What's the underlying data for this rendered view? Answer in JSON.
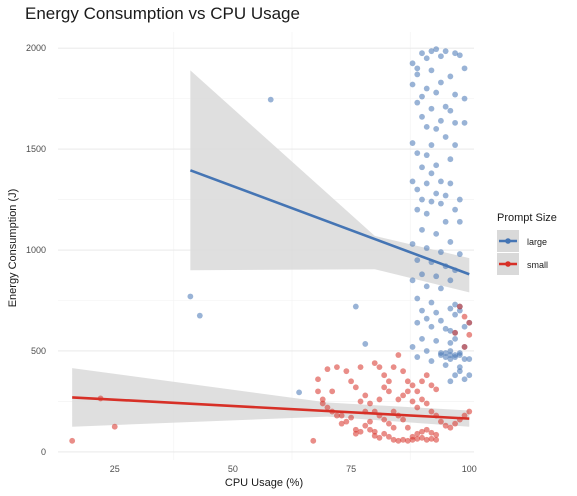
{
  "chart_data": {
    "type": "scatter",
    "title": "Energy Consumption vs CPU Usage",
    "xlabel": "CPU Usage (%)",
    "ylabel": "Energy Consumption (J)",
    "xlim": [
      13,
      101
    ],
    "ylim": [
      -40,
      2080
    ],
    "x_ticks": [
      25,
      50,
      75,
      100
    ],
    "y_ticks": [
      0,
      500,
      1000,
      1500,
      2000
    ],
    "grid": true,
    "legend": {
      "title": "Prompt Size",
      "position": "right"
    },
    "series": [
      {
        "name": "large",
        "color": "#4575b4",
        "points": [
          [
            41,
            770
          ],
          [
            43,
            675
          ],
          [
            58,
            1745
          ],
          [
            64,
            295
          ],
          [
            76,
            720
          ],
          [
            78,
            535
          ],
          [
            88,
            1925
          ],
          [
            89,
            1900
          ],
          [
            90,
            1975
          ],
          [
            92,
            1985
          ],
          [
            93,
            1995
          ],
          [
            94,
            1960
          ],
          [
            95,
            1985
          ],
          [
            97,
            1975
          ],
          [
            98,
            1965
          ],
          [
            91,
            1950
          ],
          [
            89,
            1870
          ],
          [
            92,
            1890
          ],
          [
            96,
            1860
          ],
          [
            99,
            1900
          ],
          [
            88,
            1820
          ],
          [
            91,
            1800
          ],
          [
            94,
            1830
          ],
          [
            90,
            1760
          ],
          [
            93,
            1780
          ],
          [
            97,
            1770
          ],
          [
            99,
            1750
          ],
          [
            89,
            1730
          ],
          [
            92,
            1700
          ],
          [
            95,
            1710
          ],
          [
            96,
            1690
          ],
          [
            90,
            1660
          ],
          [
            94,
            1640
          ],
          [
            97,
            1630
          ],
          [
            99,
            1630
          ],
          [
            91,
            1610
          ],
          [
            93,
            1600
          ],
          [
            95,
            1560
          ],
          [
            88,
            1530
          ],
          [
            92,
            1520
          ],
          [
            97,
            1520
          ],
          [
            89,
            1480
          ],
          [
            91,
            1470
          ],
          [
            96,
            1450
          ],
          [
            93,
            1420
          ],
          [
            90,
            1410
          ],
          [
            92,
            1380
          ],
          [
            88,
            1340
          ],
          [
            91,
            1330
          ],
          [
            94,
            1340
          ],
          [
            96,
            1330
          ],
          [
            89,
            1300
          ],
          [
            93,
            1280
          ],
          [
            95,
            1270
          ],
          [
            98,
            1250
          ],
          [
            90,
            1250
          ],
          [
            92,
            1240
          ],
          [
            94,
            1230
          ],
          [
            97,
            1200
          ],
          [
            89,
            1200
          ],
          [
            91,
            1180
          ],
          [
            95,
            1140
          ],
          [
            98,
            1140
          ],
          [
            90,
            1100
          ],
          [
            93,
            1080
          ],
          [
            96,
            1040
          ],
          [
            88,
            1030
          ],
          [
            91,
            1010
          ],
          [
            94,
            990
          ],
          [
            98,
            980
          ],
          [
            89,
            950
          ],
          [
            92,
            940
          ],
          [
            95,
            920
          ],
          [
            97,
            900
          ],
          [
            90,
            880
          ],
          [
            93,
            870
          ],
          [
            88,
            850
          ],
          [
            96,
            850
          ],
          [
            91,
            820
          ],
          [
            94,
            810
          ],
          [
            89,
            760
          ],
          [
            92,
            740
          ],
          [
            97,
            730
          ],
          [
            90,
            700
          ],
          [
            93,
            690
          ],
          [
            96,
            710
          ],
          [
            98,
            720
          ],
          [
            91,
            660
          ],
          [
            94,
            650
          ],
          [
            89,
            640
          ],
          [
            92,
            620
          ],
          [
            95,
            610
          ],
          [
            97,
            590
          ],
          [
            90,
            560
          ],
          [
            93,
            550
          ],
          [
            96,
            540
          ],
          [
            88,
            520
          ],
          [
            91,
            500
          ],
          [
            94,
            490
          ],
          [
            97,
            480
          ],
          [
            89,
            470
          ],
          [
            92,
            450
          ],
          [
            95,
            430
          ],
          [
            98,
            420
          ],
          [
            96,
            350
          ],
          [
            97,
            380
          ],
          [
            98,
            400
          ],
          [
            99,
            360
          ],
          [
            100,
            380
          ],
          [
            96,
            600
          ],
          [
            97,
            680
          ],
          [
            98,
            700
          ],
          [
            99,
            620
          ],
          [
            100,
            640
          ],
          [
            96,
            500
          ],
          [
            97,
            560
          ],
          [
            98,
            480
          ],
          [
            99,
            520
          ],
          [
            100,
            460
          ],
          [
            95,
            470
          ],
          [
            96,
            480
          ],
          [
            97,
            470
          ],
          [
            98,
            490
          ],
          [
            99,
            460
          ],
          [
            95,
            490
          ],
          [
            96,
            460
          ],
          [
            94,
            480
          ]
        ]
      },
      {
        "name": "small",
        "color": "#d73027",
        "points": [
          [
            16,
            55
          ],
          [
            22,
            265
          ],
          [
            25,
            125
          ],
          [
            67,
            55
          ],
          [
            68,
            360
          ],
          [
            69,
            240
          ],
          [
            70,
            410
          ],
          [
            71,
            300
          ],
          [
            72,
            420
          ],
          [
            73,
            180
          ],
          [
            74,
            400
          ],
          [
            75,
            350
          ],
          [
            76,
            110
          ],
          [
            77,
            420
          ],
          [
            78,
            280
          ],
          [
            79,
            240
          ],
          [
            80,
            440
          ],
          [
            81,
            420
          ],
          [
            82,
            380
          ],
          [
            83,
            300
          ],
          [
            84,
            200
          ],
          [
            85,
            180
          ],
          [
            86,
            160
          ],
          [
            87,
            120
          ],
          [
            76,
            320
          ],
          [
            77,
            250
          ],
          [
            78,
            200
          ],
          [
            79,
            150
          ],
          [
            80,
            100
          ],
          [
            81,
            260
          ],
          [
            82,
            320
          ],
          [
            83,
            350
          ],
          [
            84,
            420
          ],
          [
            85,
            480
          ],
          [
            86,
            400
          ],
          [
            87,
            350
          ],
          [
            88,
            330
          ],
          [
            89,
            300
          ],
          [
            90,
            260
          ],
          [
            91,
            240
          ],
          [
            92,
            200
          ],
          [
            93,
            180
          ],
          [
            94,
            150
          ],
          [
            95,
            130
          ],
          [
            96,
            120
          ],
          [
            97,
            140
          ],
          [
            98,
            160
          ],
          [
            99,
            180
          ],
          [
            100,
            200
          ],
          [
            98,
            720
          ],
          [
            99,
            670
          ],
          [
            100,
            640
          ],
          [
            97,
            590
          ],
          [
            100,
            580
          ],
          [
            99,
            520
          ],
          [
            84,
            60
          ],
          [
            85,
            55
          ],
          [
            86,
            60
          ],
          [
            87,
            55
          ],
          [
            88,
            60
          ],
          [
            89,
            65
          ],
          [
            90,
            70
          ],
          [
            91,
            60
          ],
          [
            92,
            65
          ],
          [
            93,
            60
          ],
          [
            90,
            100
          ],
          [
            91,
            110
          ],
          [
            89,
            90
          ],
          [
            92,
            95
          ],
          [
            88,
            75
          ],
          [
            93,
            85
          ],
          [
            80,
            80
          ],
          [
            81,
            70
          ],
          [
            82,
            90
          ],
          [
            83,
            75
          ],
          [
            76,
            90
          ],
          [
            77,
            100
          ],
          [
            78,
            130
          ],
          [
            79,
            110
          ],
          [
            74,
            150
          ],
          [
            75,
            170
          ],
          [
            73,
            140
          ],
          [
            72,
            180
          ],
          [
            71,
            200
          ],
          [
            70,
            220
          ],
          [
            69,
            260
          ],
          [
            68,
            300
          ],
          [
            80,
            200
          ],
          [
            81,
            180
          ],
          [
            82,
            160
          ],
          [
            83,
            140
          ],
          [
            84,
            120
          ],
          [
            85,
            260
          ],
          [
            86,
            280
          ],
          [
            87,
            300
          ],
          [
            88,
            250
          ],
          [
            89,
            220
          ],
          [
            90,
            350
          ],
          [
            91,
            380
          ],
          [
            92,
            330
          ],
          [
            93,
            310
          ]
        ]
      }
    ],
    "fits": [
      {
        "series": "large",
        "x_range": [
          41,
          100
        ],
        "y_range": [
          1395,
          880
        ],
        "ci_lower": [
          [
            41,
            900
          ],
          [
            80,
            905
          ],
          [
            100,
            790
          ]
        ],
        "ci_upper": [
          [
            41,
            1890
          ],
          [
            80,
            1070
          ],
          [
            100,
            960
          ]
        ]
      },
      {
        "series": "small",
        "x_range": [
          16,
          100
        ],
        "y_range": [
          270,
          165
        ],
        "ci_lower": [
          [
            16,
            125
          ],
          [
            70,
            175
          ],
          [
            100,
            125
          ]
        ],
        "ci_upper": [
          [
            16,
            415
          ],
          [
            70,
            245
          ],
          [
            100,
            205
          ]
        ]
      }
    ],
    "ci_fill": "#d9d9d9"
  }
}
